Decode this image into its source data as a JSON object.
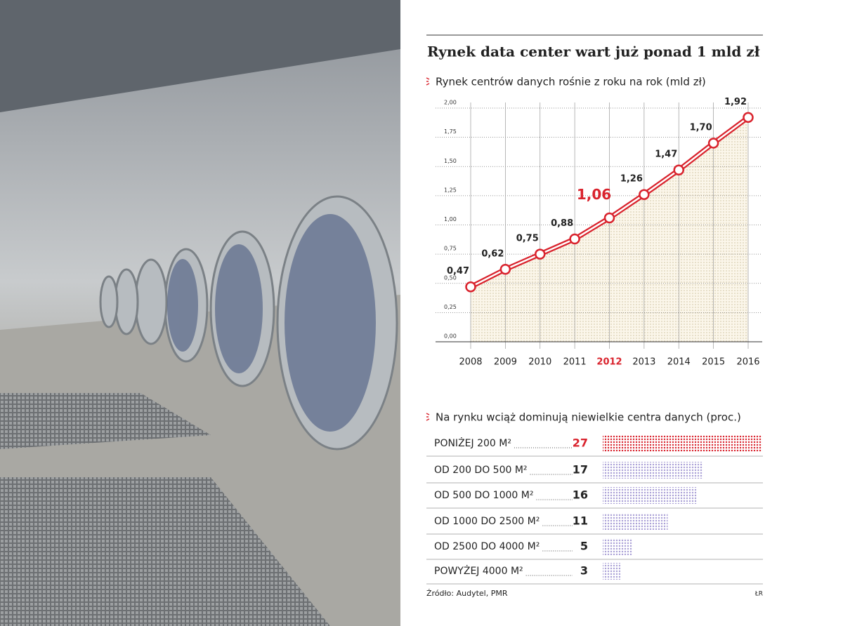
{
  "title": "Rynek data center wart już ponad 1 mld zł",
  "chart_data": [
    {
      "type": "line",
      "title": "Rynek centrów danych rośnie z roku na rok (mld zł)",
      "categories": [
        "2008",
        "2009",
        "2010",
        "2011",
        "2012",
        "2013",
        "2014",
        "2015",
        "2016"
      ],
      "highlight": "2012",
      "values": [
        0.47,
        0.62,
        0.75,
        0.88,
        1.06,
        1.26,
        1.47,
        1.7,
        1.92
      ],
      "value_labels": [
        "0,47",
        "0,62",
        "0,75",
        "0,88",
        "1,06",
        "1,26",
        "1,47",
        "1,70",
        "1,92"
      ],
      "color": "#d9232d",
      "ylim": [
        0,
        2
      ],
      "yticks": [
        {
          "value": 0,
          "label": "0,00"
        },
        {
          "value": 0.25,
          "label": "0,25"
        },
        {
          "value": 0.5,
          "label": "0,50"
        },
        {
          "value": 0.75,
          "label": "0,75"
        },
        {
          "value": 1,
          "label": "1,00"
        },
        {
          "value": 1.25,
          "label": "1,25"
        },
        {
          "value": 1.5,
          "label": "1,50"
        },
        {
          "value": 1.75,
          "label": "1,75"
        },
        {
          "value": 2,
          "label": "2,00"
        }
      ],
      "grid": true
    },
    {
      "type": "hbar",
      "title": "Na rynku wciąż dominują niewielkie centra danych (proc.)",
      "categories": [
        "PONIŻEJ 200 M²",
        "OD 200 DO 500 M²",
        "OD 500 DO 1000 M²",
        "OD 1000 DO 2500 M²",
        "OD 2500 DO 4000 M²",
        "POWYŻEJ 4000 M²"
      ],
      "values": [
        27,
        17,
        16,
        11,
        5,
        3
      ],
      "colors": [
        "#d9232d",
        "#a99fd6",
        "#a99fd6",
        "#a99fd6",
        "#a99fd6",
        "#a99fd6"
      ],
      "xlim": [
        0,
        27
      ]
    }
  ],
  "source": "Źródło: Audytel, PMR",
  "credit": "ŁR"
}
